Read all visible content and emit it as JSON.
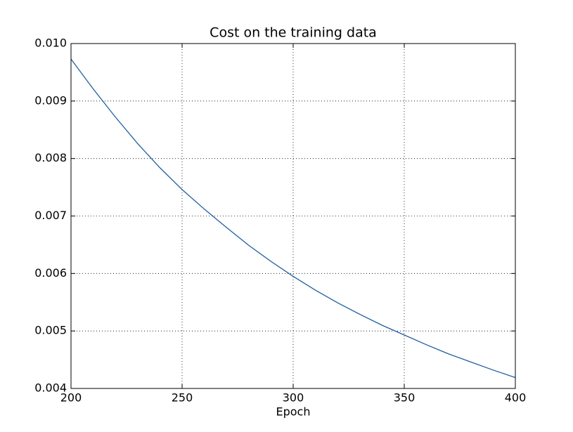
{
  "chart_data": {
    "type": "line",
    "title": "Cost on the training data",
    "x_label": "Epoch",
    "x": [
      200,
      210,
      220,
      230,
      240,
      250,
      260,
      270,
      280,
      290,
      300,
      310,
      320,
      330,
      340,
      350,
      360,
      370,
      380,
      390,
      400
    ],
    "series": [
      {
        "color": "#1f5f9f",
        "values": [
          0.00973,
          0.00921,
          0.00872,
          0.00826,
          0.00784,
          0.00746,
          0.00712,
          0.0068,
          0.00649,
          0.00621,
          0.00595,
          0.00571,
          0.00549,
          0.00529,
          0.0051,
          0.00493,
          0.00476,
          0.0046,
          0.00446,
          0.00432,
          0.00419
        ]
      }
    ],
    "xlim": [
      200,
      400
    ],
    "xticks": [
      200,
      250,
      300,
      350,
      400
    ],
    "ylim": [
      0.004,
      0.01
    ],
    "yticks": [
      0.004,
      0.005,
      0.006,
      0.007,
      0.008,
      0.009,
      {
        "value": 0.01,
        "label": "0.010"
      }
    ],
    "grid": true
  }
}
